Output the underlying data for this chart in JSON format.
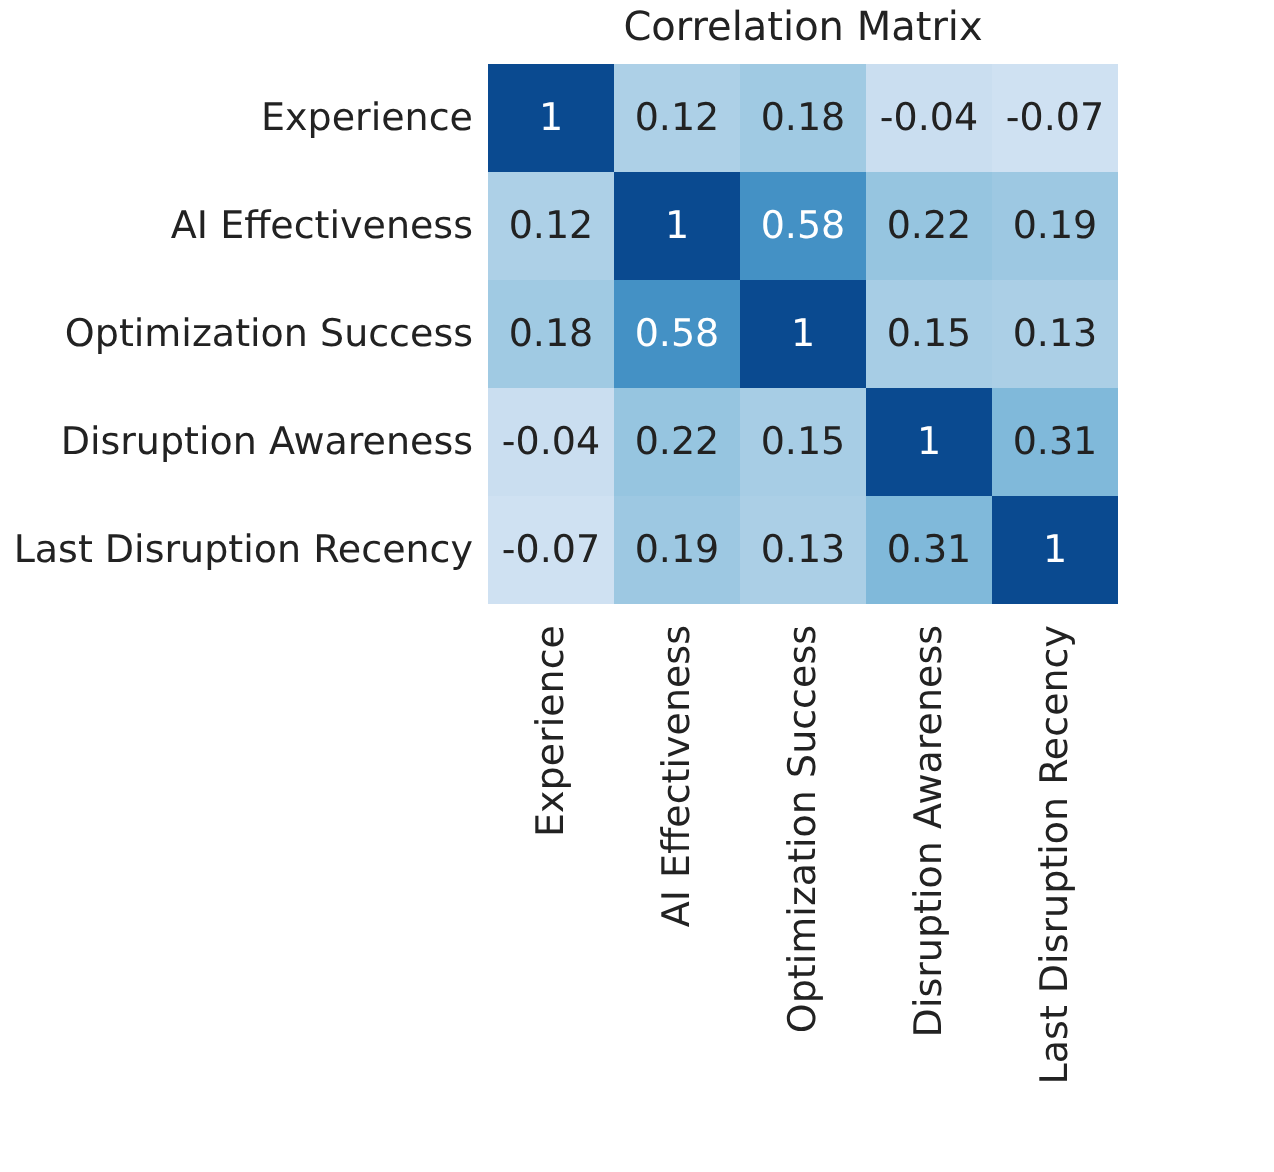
{
  "chart_data": {
    "type": "heatmap",
    "title": "Correlation Matrix",
    "categories": [
      "Experience",
      "AI Effectiveness",
      "Optimization Success",
      "Disruption Awareness",
      "Last Disruption Recency"
    ],
    "y_categories": [
      "Experience",
      "AI Effectiveness",
      "Optimization Success",
      "Disruption Awareness",
      "Last Disruption Recency"
    ],
    "cells": [
      [
        1,
        0.12,
        0.18,
        -0.04,
        -0.07
      ],
      [
        0.12,
        1,
        0.58,
        0.22,
        0.19
      ],
      [
        0.18,
        0.58,
        1,
        0.15,
        0.13
      ],
      [
        -0.04,
        0.22,
        0.15,
        1,
        0.31
      ],
      [
        -0.07,
        0.19,
        0.13,
        0.31,
        1
      ]
    ],
    "data_labels": true
  }
}
